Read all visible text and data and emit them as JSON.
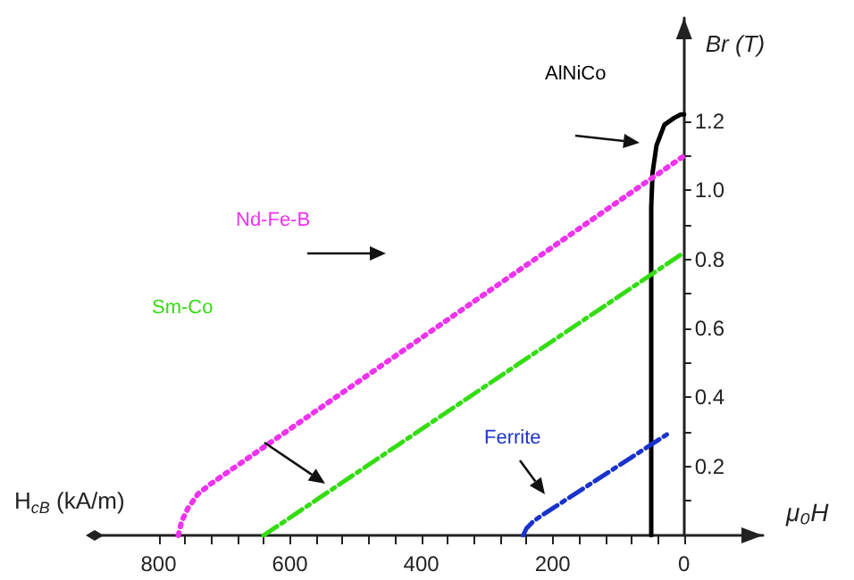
{
  "chart_data": {
    "type": "line",
    "xlabel": "H$_{cB}$ (kA/m)",
    "ylabel": "Br (T)",
    "annotations": [
      "μ₀H"
    ],
    "xlim": [
      900,
      -120
    ],
    "ylim": [
      0,
      1.5
    ],
    "xticks": [
      {
        "value": 800,
        "label": "800"
      },
      {
        "value": 760,
        "label": null
      },
      {
        "value": 720,
        "label": null
      },
      {
        "value": 680,
        "label": null
      },
      {
        "value": 640,
        "label": null
      },
      {
        "value": 600,
        "label": "600"
      },
      {
        "value": 560,
        "label": null
      },
      {
        "value": 520,
        "label": null
      },
      {
        "value": 480,
        "label": null
      },
      {
        "value": 440,
        "label": null
      },
      {
        "value": 400,
        "label": "400"
      },
      {
        "value": 360,
        "label": null
      },
      {
        "value": 320,
        "label": null
      },
      {
        "value": 280,
        "label": null
      },
      {
        "value": 240,
        "label": null
      },
      {
        "value": 200,
        "label": "200"
      },
      {
        "value": 160,
        "label": null
      },
      {
        "value": 120,
        "label": null
      },
      {
        "value": 80,
        "label": null
      },
      {
        "value": 40,
        "label": null
      },
      {
        "value": 0,
        "label": "0"
      }
    ],
    "yticks": [
      {
        "value": 0.1,
        "label": null
      },
      0.2,
      {
        "value": 0.3,
        "label": null
      },
      0.4,
      {
        "value": 0.5,
        "label": null
      },
      0.6,
      {
        "value": 0.7,
        "label": null
      },
      0.8,
      {
        "value": 0.9,
        "label": null
      },
      {
        "value": 1,
        "label": "1.0"
      },
      {
        "value": 1.1,
        "label": null
      },
      1.2
    ],
    "grid": false,
    "legend": false,
    "marker": "none",
    "series": [
      {
        "name": "AlNiCo",
        "color": "#000000",
        "line_style": "solid",
        "x": [
          50,
          50,
          48,
          42,
          30,
          15,
          5,
          0
        ],
        "values": [
          0,
          0.95,
          1.05,
          1.13,
          1.19,
          1.21,
          1.22,
          1.22
        ]
      },
      {
        "name": "Nd-Fe-B",
        "color": "#ee33ee",
        "line_style": "dotted",
        "x": [
          770,
          765,
          755,
          740,
          720,
          0
        ],
        "values": [
          0,
          0.04,
          0.08,
          0.12,
          0.15,
          1.1
        ]
      },
      {
        "name": "Sm-Co",
        "color": "#33dd11",
        "line_style": "dashed",
        "x": [
          640,
          0
        ],
        "values": [
          0,
          0.82
        ]
      },
      {
        "name": "Ferrite",
        "color": "#1a33cc",
        "line_style": "dashed",
        "x": [
          245,
          240,
          230,
          215,
          20
        ],
        "values": [
          0,
          0.02,
          0.04,
          0.06,
          0.3
        ]
      }
    ]
  }
}
